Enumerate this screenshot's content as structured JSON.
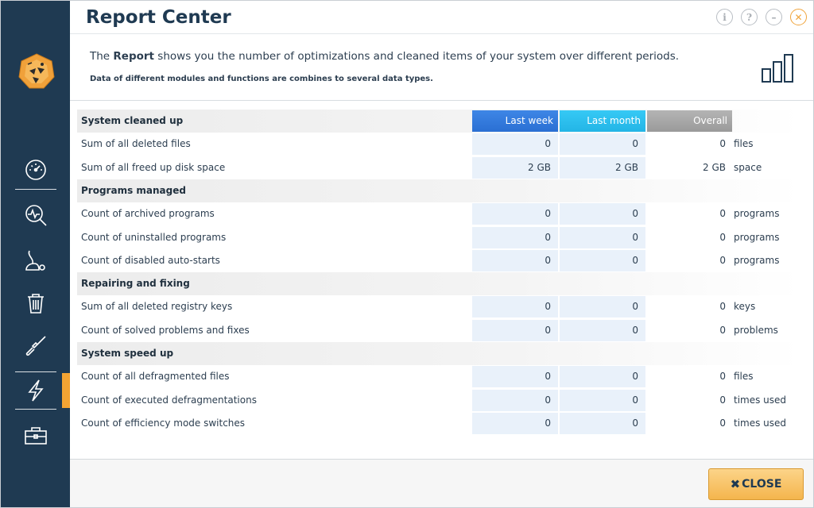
{
  "window": {
    "title": "Report Center",
    "buttons": {
      "info": "i",
      "help": "?",
      "minimize": "–",
      "close": "✕"
    }
  },
  "intro": {
    "text_prefix": "The ",
    "text_bold": "Report",
    "text_suffix": " shows you the number of optimizations and cleaned items of your system over different periods.",
    "subtitle": "Data of different modules and functions are combines to several data types."
  },
  "columns": [
    "Last week",
    "Last month",
    "Overall"
  ],
  "sections": [
    {
      "title": "System cleaned up",
      "rows": [
        {
          "label": "Sum of all deleted files",
          "values": [
            "0",
            "0",
            "0"
          ],
          "unit": "files"
        },
        {
          "label": "Sum of all freed up disk space",
          "values": [
            "2 GB",
            "2 GB",
            "2 GB"
          ],
          "unit": "space"
        }
      ]
    },
    {
      "title": "Programs managed",
      "rows": [
        {
          "label": "Count of archived programs",
          "values": [
            "0",
            "0",
            "0"
          ],
          "unit": "programs"
        },
        {
          "label": "Count of uninstalled programs",
          "values": [
            "0",
            "0",
            "0"
          ],
          "unit": "programs"
        },
        {
          "label": "Count of disabled auto-starts",
          "values": [
            "0",
            "0",
            "0"
          ],
          "unit": "programs"
        }
      ]
    },
    {
      "title": "Repairing and fixing",
      "rows": [
        {
          "label": "Sum of all deleted registry keys",
          "values": [
            "0",
            "0",
            "0"
          ],
          "unit": "keys"
        },
        {
          "label": "Count of solved problems and fixes",
          "values": [
            "0",
            "0",
            "0"
          ],
          "unit": "problems"
        }
      ]
    },
    {
      "title": "System speed up",
      "rows": [
        {
          "label": "Count of all defragmented files",
          "values": [
            "0",
            "0",
            "0"
          ],
          "unit": "files"
        },
        {
          "label": "Count of executed defragmentations",
          "values": [
            "0",
            "0",
            "0"
          ],
          "unit": "times used"
        },
        {
          "label": "Count of efficiency mode switches",
          "values": [
            "0",
            "0",
            "0"
          ],
          "unit": "times used"
        }
      ]
    }
  ],
  "sidebar": {
    "items": [
      {
        "icon": "dashboard-gauge-icon"
      },
      {
        "icon": "analysis-magnifier-icon"
      },
      {
        "icon": "vacuum-cleaner-icon"
      },
      {
        "icon": "trash-bin-icon"
      },
      {
        "icon": "screwdriver-icon"
      },
      {
        "icon": "lightning-icon",
        "active": true
      },
      {
        "icon": "toolbox-icon"
      }
    ],
    "accent": "#f3a433",
    "background": "#1f3a52"
  },
  "footer": {
    "close_label": "CLOSE",
    "close_icon": "✖"
  },
  "colors": {
    "last_week": "#2a6fd3",
    "last_month": "#23b5e6",
    "overall": "#9a9a9a",
    "cell_bg": "#e9f1fa"
  }
}
